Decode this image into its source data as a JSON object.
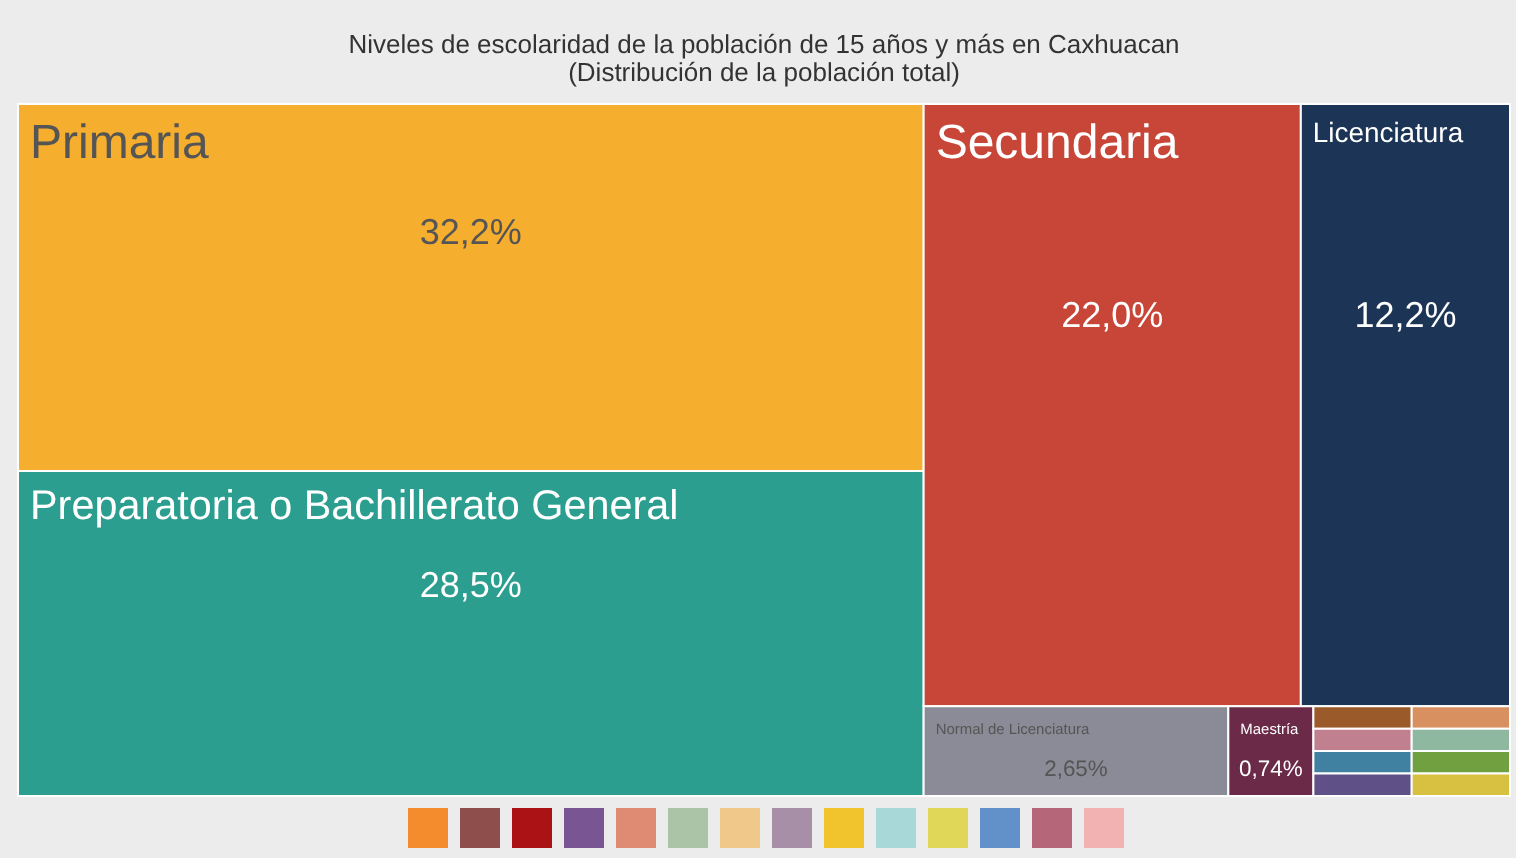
{
  "chart_data": {
    "type": "other",
    "title": "Niveles de escolaridad de la población de 15 años y más en Caxhuacan",
    "subtitle": "(Distribución de la población total)",
    "categories": [
      "Primaria",
      "Preparatoria o Bachillerato General",
      "Secundaria",
      "Licenciatura",
      "Normal de Licenciatura",
      "Maestría",
      null,
      null,
      null,
      null,
      null,
      null,
      null,
      null
    ],
    "values": [
      32.2,
      28.5,
      22.0,
      12.2,
      2.65,
      0.74,
      null,
      null,
      null,
      null,
      null,
      null,
      null,
      null
    ],
    "value_labels": [
      "32,2%",
      "28,5%",
      "22,0%",
      "12,2%",
      "2,65%",
      "0,74%",
      null,
      null,
      null,
      null,
      null,
      null,
      null,
      null
    ],
    "colors": [
      "#f5ae2e",
      "#2b9e8f",
      "#c84638",
      "#1c3557",
      "#8b8b98",
      "#6b2a48",
      "#9a5a2a",
      "#c08090",
      "#4080a0",
      "#5f5088",
      "#d89060",
      "#8fb8a0",
      "#70a040",
      "#d8c040"
    ]
  }
}
